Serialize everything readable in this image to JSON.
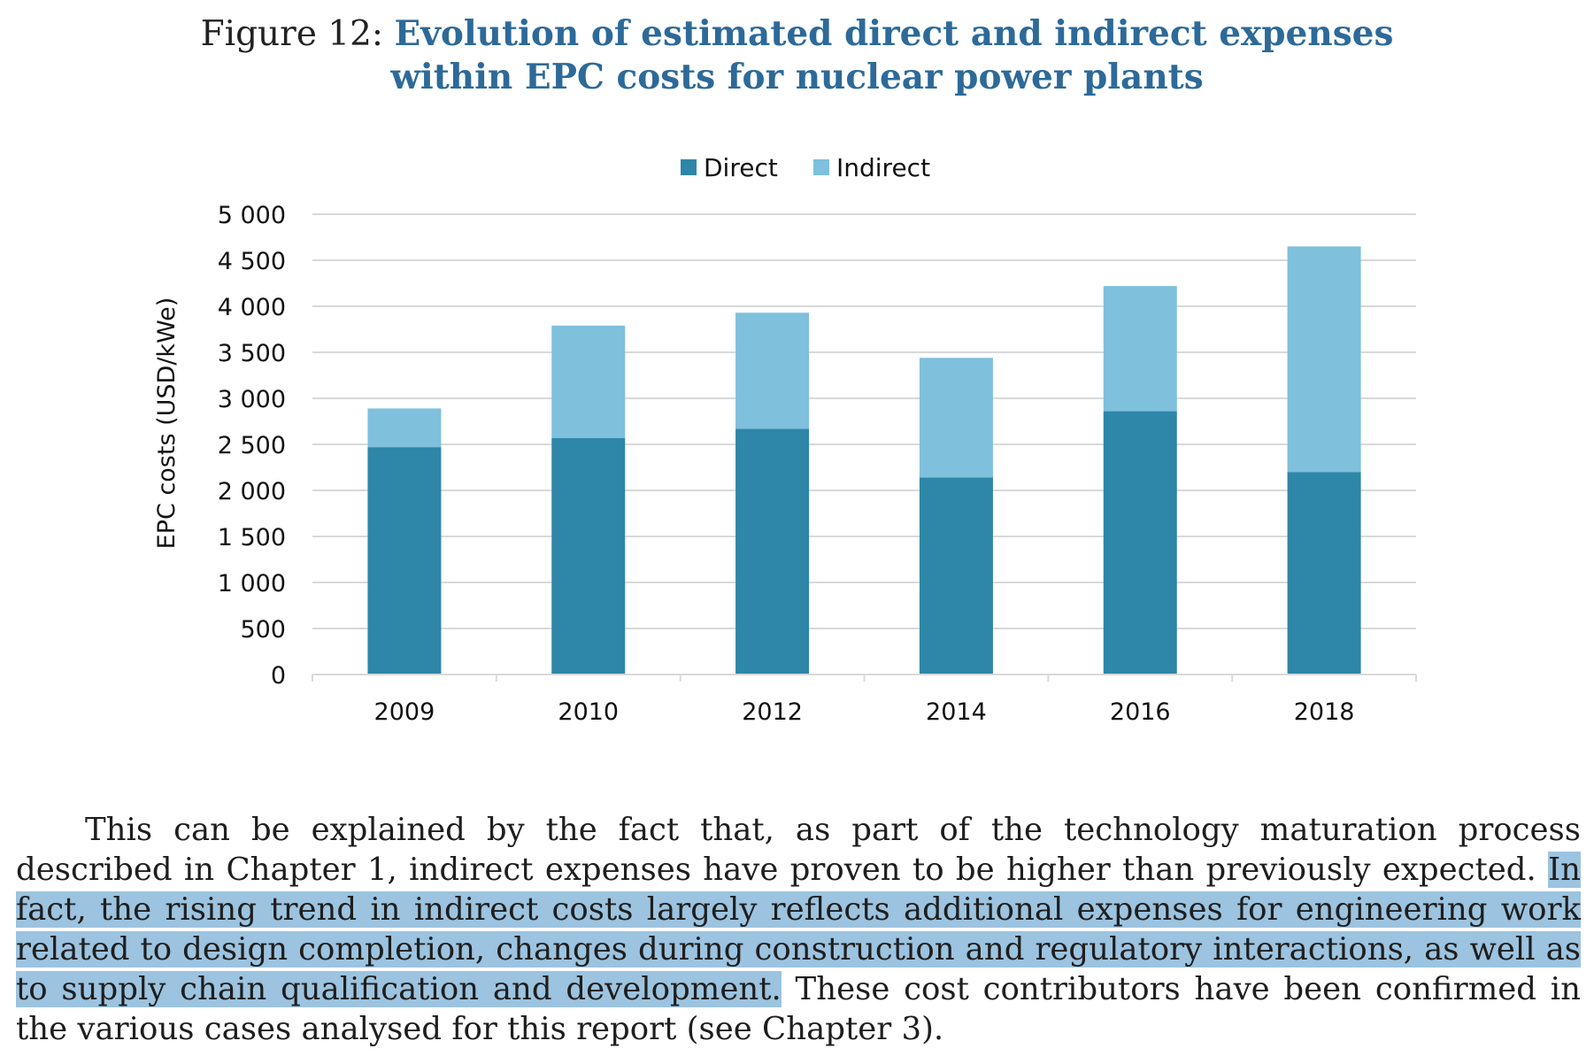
{
  "figure": {
    "prefix": "Figure 12: ",
    "title_line1": "Evolution of estimated direct and indirect expenses",
    "title_line2": "within EPC costs for nuclear power plants"
  },
  "chart_data": {
    "type": "bar",
    "stacked": true,
    "categories": [
      "2009",
      "2010",
      "2012",
      "2014",
      "2016",
      "2018"
    ],
    "series": [
      {
        "name": "Direct",
        "color": "#2e86a9",
        "values": [
          2470,
          2570,
          2670,
          2140,
          2860,
          2200
        ]
      },
      {
        "name": "Indirect",
        "color": "#7fc0dc",
        "values": [
          420,
          1220,
          1260,
          1300,
          1360,
          2450
        ]
      }
    ],
    "ylabel": "EPC costs (USD/kWe)",
    "xlabel": "",
    "ylim": [
      0,
      5000
    ],
    "yticks": [
      0,
      500,
      1000,
      1500,
      2000,
      2500,
      3000,
      3500,
      4000,
      4500,
      5000
    ],
    "ytick_labels": [
      "0",
      "500",
      "1 000",
      "1 500",
      "2 000",
      "2 500",
      "3 000",
      "3 500",
      "4 000",
      "4 500",
      "5 000"
    ],
    "grid": true,
    "legend_position": "top-center"
  },
  "paragraph": {
    "text_before": "This can be explained by the fact that, as part of the technology maturation process described in Chapter 1, indirect expenses have proven to be higher than previously expected. ",
    "text_highlighted": "In fact, the rising trend in indirect costs largely reflects additional expenses for engineering work related to design completion, changes during construction and regulatory interactions, as well as to supply chain qualification and development.",
    "text_after": " These cost contributors have been confirmed in the various cases analysed for this report (see Chapter 3)."
  }
}
